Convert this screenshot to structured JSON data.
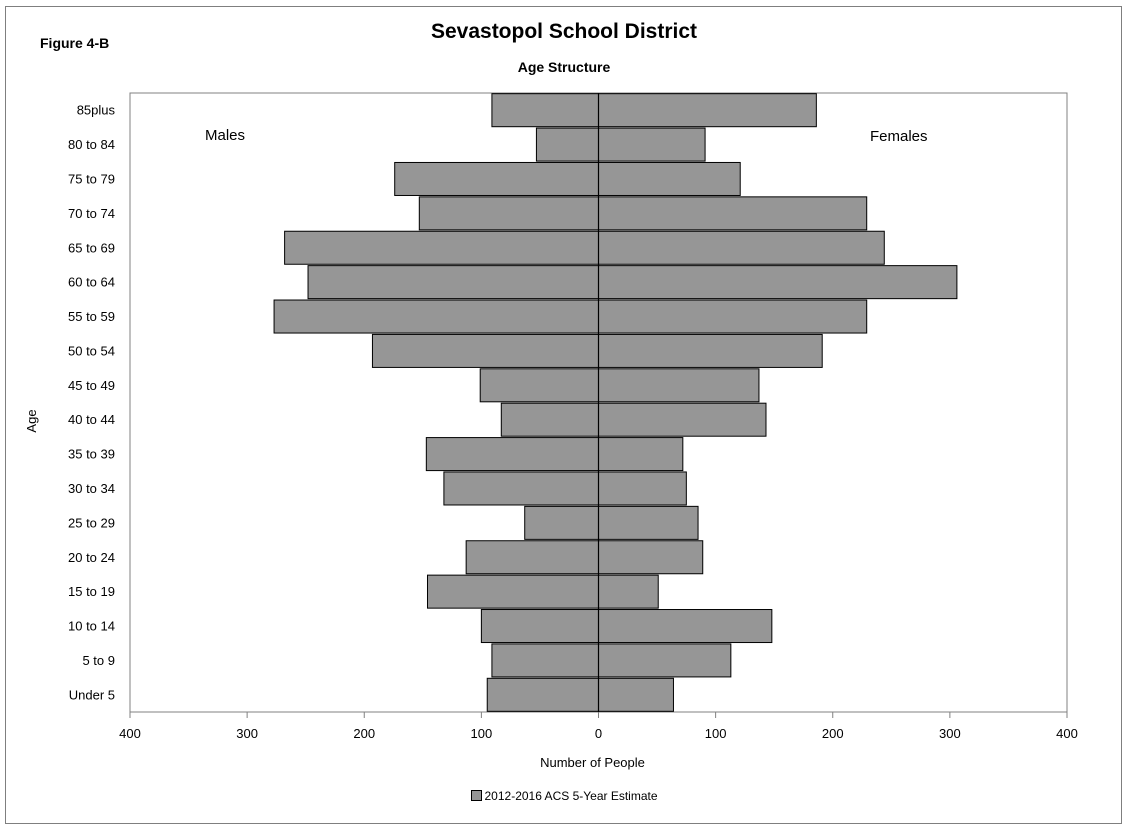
{
  "figure_label": "Figure 4-B",
  "chart_data": {
    "type": "bar",
    "orientation": "horizontal",
    "subtype": "population-pyramid",
    "title": "Sevastopol School District",
    "subtitle": "Age Structure",
    "xlabel": "Number of People",
    "ylabel": "Age",
    "xlim": [
      -400,
      400
    ],
    "x_ticks": [
      -400,
      -300,
      -200,
      -100,
      0,
      100,
      200,
      300,
      400
    ],
    "x_tick_labels": [
      "400",
      "300",
      "200",
      "100",
      "0",
      "100",
      "200",
      "300",
      "400"
    ],
    "categories": [
      "Under 5",
      "5 to 9",
      "10 to 14",
      "15 to 19",
      "20 to 24",
      "25 to 29",
      "30 to 34",
      "35 to 39",
      "40 to 44",
      "45 to 49",
      "50 to 54",
      "55 to 59",
      "60 to 64",
      "65 to 69",
      "70 to 74",
      "75 to 79",
      "80 to 84",
      "85plus"
    ],
    "series": [
      {
        "name": "Males",
        "values": [
          95,
          91,
          100,
          146,
          113,
          63,
          132,
          147,
          83,
          101,
          193,
          277,
          248,
          268,
          153,
          174,
          53,
          91
        ]
      },
      {
        "name": "Females",
        "values": [
          64,
          113,
          148,
          51,
          89,
          85,
          75,
          72,
          143,
          137,
          191,
          229,
          306,
          244,
          229,
          121,
          91,
          186
        ]
      }
    ],
    "annotations": [
      "Males",
      "Females"
    ],
    "legend": {
      "label": "2012-2016 ACS 5-Year Estimate",
      "position": "bottom"
    },
    "bar_color": "#969696",
    "grid": false
  }
}
